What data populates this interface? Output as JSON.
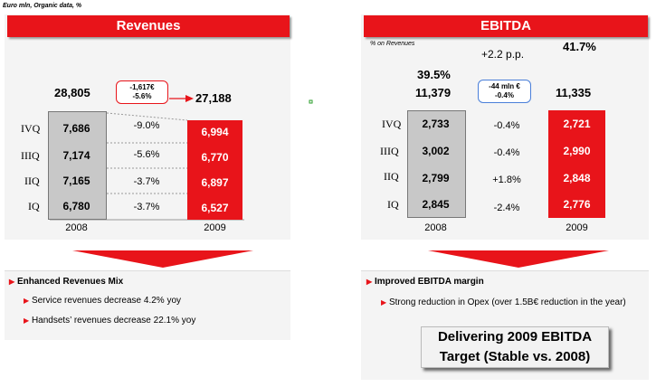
{
  "unit_note": "Euro mln, Organic data, %",
  "revenues": {
    "title": "Revenues",
    "quarters": [
      "IVQ",
      "IIIQ",
      "IIQ",
      "IQ"
    ],
    "y2008": [
      "7,686",
      "7,174",
      "7,165",
      "6,780"
    ],
    "pct": [
      "-9.0%",
      "-5.6%",
      "-3.7%",
      "-3.7%"
    ],
    "y2009": [
      "6,994",
      "6,770",
      "6,897",
      "6,527"
    ],
    "total_2008": "28,805",
    "total_2009": "27,188",
    "callout_line1": "-1,617€",
    "callout_line2": "-5.6%",
    "year_2008": "2008",
    "year_2009": "2009",
    "bullet_title": "Enhanced Revenues Mix",
    "bullets": [
      "Service revenues decrease 4.2% yoy",
      "Handsets’ revenues decrease 22.1% yoy"
    ]
  },
  "ebitda": {
    "title": "EBITDA",
    "margin_note": "% on Revenues",
    "margin_2008": "39.5%",
    "margin_2009": "41.7%",
    "margin_delta": "+2.2 p.p.",
    "quarters": [
      "IVQ",
      "IIIQ",
      "IIQ",
      "IQ"
    ],
    "y2008": [
      "2,733",
      "3,002",
      "2,799",
      "2,845"
    ],
    "pct": [
      "-0.4%",
      "-0.4%",
      "+1.8%",
      "-2.4%"
    ],
    "y2009": [
      "2,721",
      "2,990",
      "2,848",
      "2,776"
    ],
    "total_2008": "11,379",
    "total_2009": "11,335",
    "callout_line1": "-44 mln €",
    "callout_line2": "-0.4%",
    "year_2008": "2008",
    "year_2009": "2009",
    "bullet_title": "Improved EBITDA margin",
    "bullets": [
      "Strong reduction in Opex (over 1.5B€ reduction in the year)"
    ],
    "target_line1": "Delivering 2009 EBITDA",
    "target_line2": "Target (Stable vs. 2008)"
  },
  "colors": {
    "accent": "#e8141a",
    "grey": "#c8c8c8",
    "panel": "#f4f4f4"
  }
}
